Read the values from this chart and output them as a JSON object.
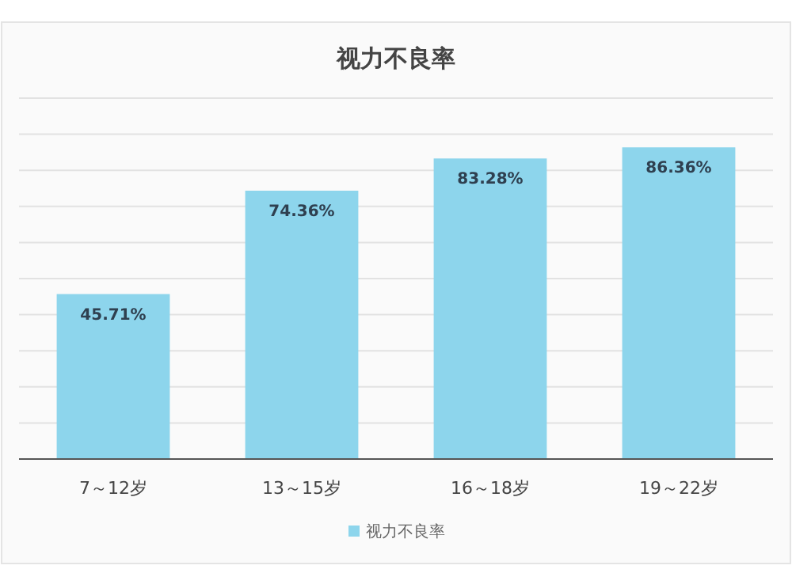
{
  "chart_data": {
    "type": "bar",
    "title": "视力不良率",
    "categories": [
      "7～12岁",
      "13～15岁",
      "16～18岁",
      "19～22岁"
    ],
    "series": [
      {
        "name": "视力不良率",
        "color": "#8dd5ec",
        "values": [
          45.71,
          74.36,
          83.28,
          86.36
        ],
        "value_labels": [
          "45.71%",
          "74.36%",
          "83.28%",
          "86.36%"
        ]
      }
    ],
    "ylim": [
      0,
      100
    ],
    "yticks": [
      {
        "value": 0,
        "label": null
      },
      {
        "value": 10,
        "label": null
      },
      {
        "value": 20,
        "label": null
      },
      {
        "value": 30,
        "label": null
      },
      {
        "value": 40,
        "label": null
      },
      {
        "value": 50,
        "label": null
      },
      {
        "value": 60,
        "label": null
      },
      {
        "value": 70,
        "label": null
      },
      {
        "value": 80,
        "label": null
      },
      {
        "value": 90,
        "label": null
      },
      {
        "value": 100,
        "label": null
      }
    ],
    "grid": "y",
    "tick_labels": "x",
    "legend": "bottom"
  }
}
